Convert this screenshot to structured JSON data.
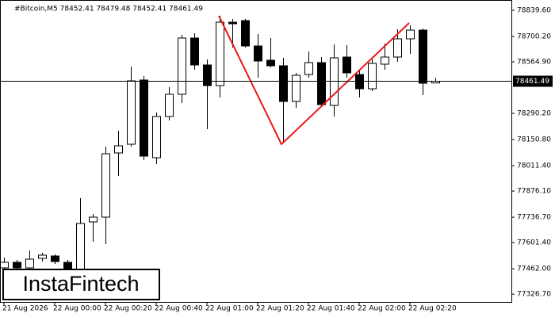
{
  "chart_data": {
    "type": "candlestick",
    "title": "#Bitcoin,M5  78452.41 78479.48 78452.41 78461.49",
    "watermark": "InstaFintech",
    "bull_color": "#ffffff",
    "bear_color": "#000000",
    "pattern_color": "#e8191a",
    "series": [
      {
        "open": [
          77466.8,
          77496.4,
          77466.8,
          77517.5,
          77530.2,
          77496.4,
          77437.3,
          77711.8,
          77737.2,
          78079.3,
          78125.7,
          78467.9,
          78054.0,
          78273.6,
          78391.9,
          78691.8,
          78548.2,
          78438.3,
          78776.2,
          78784.7,
          78649.5,
          78573.5,
          78543.9,
          78353.8,
          78497.5,
          78560.8,
          78332.7,
          78590.4,
          78497.5,
          78421.4,
          78552.4,
          78590.4,
          78687.5,
          78734.0,
          78452.41
        ],
        "high": [
          77521.7,
          77509.1,
          77559.7,
          77547.1,
          77538.6,
          77509.1,
          77838.5,
          77754.1,
          78113.1,
          78197.6,
          78539.7,
          78489.0,
          78294.7,
          78429.9,
          78708.7,
          78717.1,
          78577.7,
          78810.0,
          78793.1,
          78793.1,
          78712.9,
          78691.8,
          78586.2,
          78506.0,
          78619.9,
          78590.4,
          78658.0,
          78653.7,
          78522.8,
          78577.7,
          78662.2,
          78738.2,
          78759.3,
          78742.5,
          78479.48
        ],
        "low": [
          77437.3,
          77458.4,
          77458.4,
          77500.6,
          77487.9,
          77437.3,
          77437.3,
          77606.2,
          77593.5,
          77956.8,
          78113.1,
          78041.3,
          78020.2,
          78252.5,
          78345.4,
          78522.8,
          78206.0,
          78375.0,
          78641.1,
          78641.1,
          78480.6,
          78535.5,
          78134.2,
          78320.0,
          78480.6,
          78324.3,
          78273.6,
          78480.6,
          78375.0,
          78408.8,
          78522.8,
          78565.0,
          78607.3,
          78387.6,
          78452.41
        ],
        "close": [
          77496.4,
          77466.8,
          77513.3,
          77534.4,
          77500.6,
          77458.4,
          77703.4,
          77737.2,
          78075.1,
          78117.3,
          78463.7,
          78062.4,
          78273.6,
          78391.9,
          78691.8,
          78548.2,
          78438.3,
          78776.2,
          78767.8,
          78649.5,
          78569.3,
          78543.9,
          78353.8,
          78493.3,
          78560.8,
          78336.9,
          78586.2,
          78506.0,
          78421.4,
          78556.6,
          78590.4,
          78687.5,
          78734.0,
          78451.0,
          78461.49
        ]
      }
    ],
    "current_price": 78461.49,
    "ylim": [
      77285.2,
      78894.5
    ],
    "yticks": [
      {
        "value": 78839.6,
        "label": "78839.60"
      },
      {
        "value": 78700.2,
        "label": "78700.20"
      },
      {
        "value": 78564.9,
        "label": "78564.90"
      },
      {
        "value": 78290.2,
        "label": "78290.20"
      },
      {
        "value": 78150.8,
        "label": "78150.80"
      },
      {
        "value": 78011.4,
        "label": "78011.40"
      },
      {
        "value": 77876.1,
        "label": "77876.10"
      },
      {
        "value": 77736.7,
        "label": "77736.70"
      },
      {
        "value": 77601.4,
        "label": "77601.40"
      },
      {
        "value": 77462.0,
        "label": "77462.00"
      },
      {
        "value": 77326.7,
        "label": "77326.70"
      }
    ],
    "xticks": [
      {
        "value": 0,
        "label": "21 Aug 2026"
      },
      {
        "value": 4,
        "label": "22 Aug 00:00"
      },
      {
        "value": 8,
        "label": "22 Aug 00:20"
      },
      {
        "value": 12,
        "label": "22 Aug 00:40"
      },
      {
        "value": 16,
        "label": "22 Aug 01:00"
      },
      {
        "value": 20,
        "label": "22 Aug 01:20"
      },
      {
        "value": 24,
        "label": "22 Aug 01:40"
      },
      {
        "value": 28,
        "label": "22 Aug 02:00"
      },
      {
        "value": 32,
        "label": "22 Aug 02:20"
      }
    ]
  }
}
